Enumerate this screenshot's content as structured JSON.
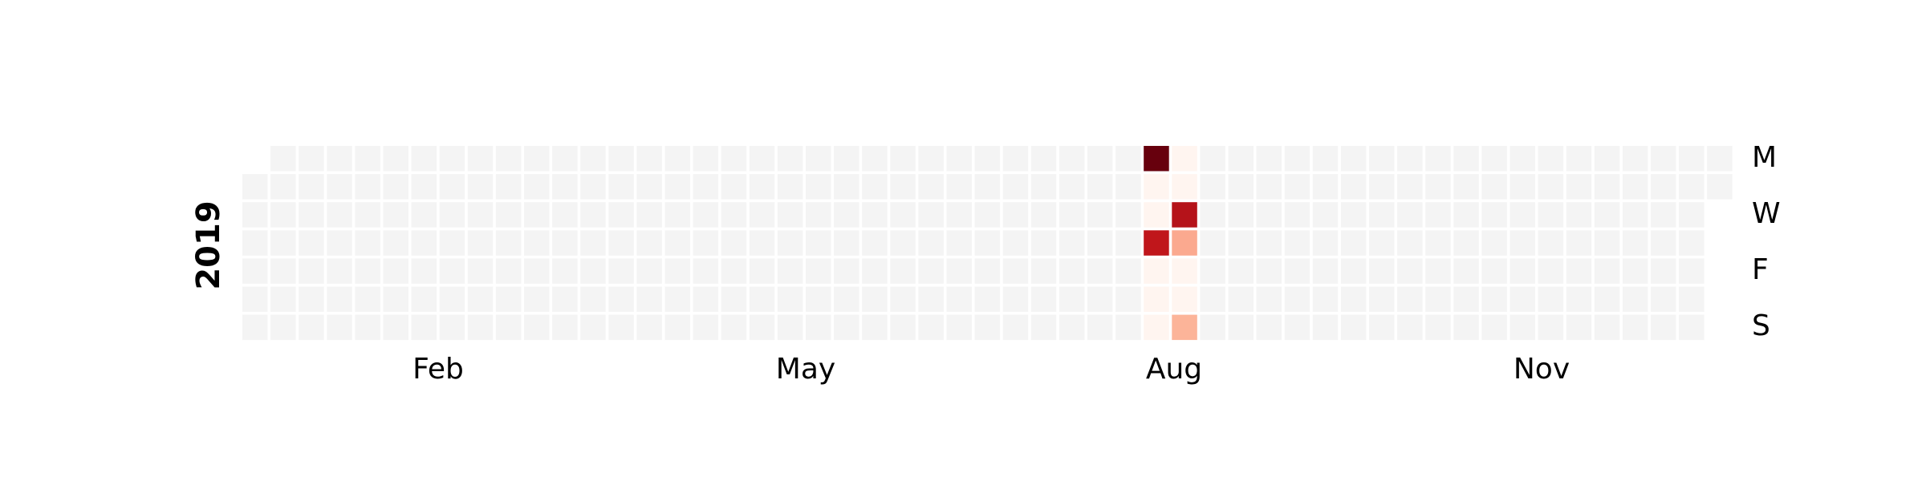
{
  "chart_data": {
    "type": "heatmap",
    "title": "",
    "year": "2019",
    "x_tick_labels": [
      "Feb",
      "May",
      "Aug",
      "Nov"
    ],
    "y_tick_labels": [
      "M",
      "W",
      "F",
      "S"
    ],
    "empty_color": "#f4f4f4",
    "colormap": "Reds",
    "colors": {
      "level_1": "#fff5f0",
      "level_2": "#fcb499",
      "level_3": "#fba98f",
      "level_4": "#c0161b",
      "level_5": "#b5131a",
      "level_6": "#67000d"
    },
    "active_days": [
      {
        "date": "2019-08-12",
        "level": 6
      },
      {
        "date": "2019-08-13",
        "level": 1
      },
      {
        "date": "2019-08-14",
        "level": 1
      },
      {
        "date": "2019-08-15",
        "level": 4
      },
      {
        "date": "2019-08-16",
        "level": 1
      },
      {
        "date": "2019-08-17",
        "level": 1
      },
      {
        "date": "2019-08-18",
        "level": 1
      },
      {
        "date": "2019-08-19",
        "level": 1
      },
      {
        "date": "2019-08-20",
        "level": 1
      },
      {
        "date": "2019-08-21",
        "level": 5
      },
      {
        "date": "2019-08-22",
        "level": 3
      },
      {
        "date": "2019-08-23",
        "level": 1
      },
      {
        "date": "2019-08-24",
        "level": 1
      },
      {
        "date": "2019-08-25",
        "level": 2
      }
    ]
  }
}
